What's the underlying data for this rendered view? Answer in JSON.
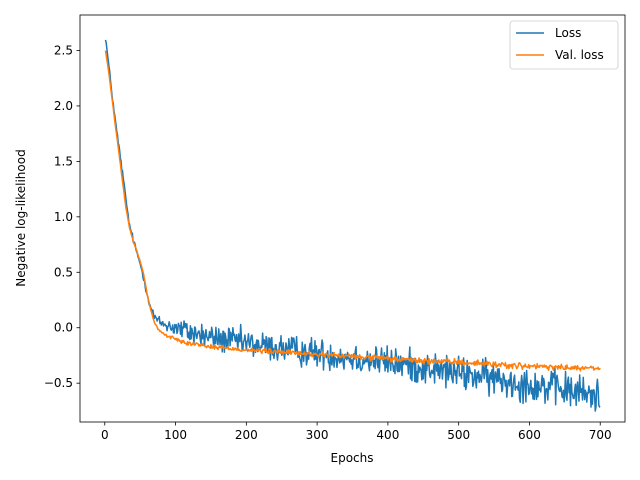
{
  "chart_data": {
    "type": "line",
    "title": "",
    "xlabel": "Epochs",
    "ylabel": "Negative log-likelihood",
    "xlim": [
      -35,
      735
    ],
    "ylim": [
      -0.85,
      2.82
    ],
    "xticks": [
      0,
      100,
      200,
      300,
      400,
      500,
      600,
      700
    ],
    "yticks": [
      -0.5,
      0.0,
      0.5,
      1.0,
      1.5,
      2.0,
      2.5
    ],
    "ytick_labels": [
      "−0.5",
      "0.0",
      "0.5",
      "1.0",
      "1.5",
      "2.0",
      "2.5"
    ],
    "grid": false,
    "legend_position": "top-right",
    "series": [
      {
        "name": "Loss",
        "color": "#1f77b4",
        "noise": 0.055,
        "x": [
          1,
          5,
          10,
          15,
          20,
          25,
          30,
          35,
          40,
          45,
          50,
          55,
          60,
          65,
          70,
          75,
          80,
          90,
          100,
          120,
          150,
          200,
          250,
          300,
          350,
          400,
          450,
          500,
          550,
          600,
          650,
          700
        ],
        "y": [
          2.62,
          2.4,
          2.12,
          1.86,
          1.63,
          1.4,
          1.15,
          0.92,
          0.8,
          0.68,
          0.58,
          0.45,
          0.3,
          0.18,
          0.1,
          0.06,
          0.04,
          0.02,
          0.0,
          -0.04,
          -0.09,
          -0.14,
          -0.19,
          -0.23,
          -0.27,
          -0.31,
          -0.36,
          -0.41,
          -0.46,
          -0.51,
          -0.56,
          -0.62
        ]
      },
      {
        "name": "Val. loss",
        "color": "#ff7f0e",
        "noise": 0.01,
        "x": [
          1,
          5,
          10,
          15,
          20,
          25,
          30,
          35,
          40,
          45,
          50,
          55,
          60,
          65,
          70,
          75,
          80,
          90,
          100,
          120,
          150,
          200,
          250,
          300,
          350,
          400,
          450,
          500,
          550,
          600,
          650,
          700
        ],
        "y": [
          2.5,
          2.33,
          2.08,
          1.82,
          1.58,
          1.32,
          1.08,
          0.9,
          0.78,
          0.7,
          0.6,
          0.48,
          0.3,
          0.16,
          0.05,
          -0.01,
          -0.04,
          -0.08,
          -0.1,
          -0.14,
          -0.17,
          -0.2,
          -0.22,
          -0.24,
          -0.26,
          -0.28,
          -0.3,
          -0.31,
          -0.33,
          -0.35,
          -0.36,
          -0.37
        ]
      }
    ]
  }
}
